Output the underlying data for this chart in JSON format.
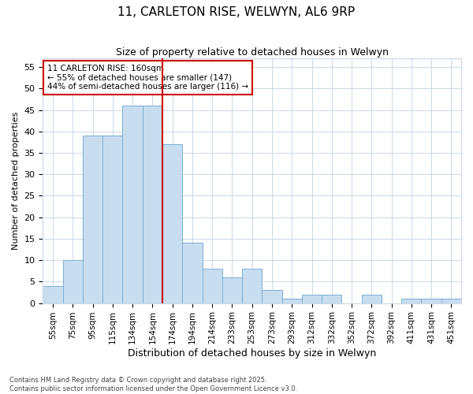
{
  "title1": "11, CARLETON RISE, WELWYN, AL6 9RP",
  "title2": "Size of property relative to detached houses in Welwyn",
  "xlabel": "Distribution of detached houses by size in Welwyn",
  "ylabel": "Number of detached properties",
  "categories": [
    "55sqm",
    "75sqm",
    "95sqm",
    "115sqm",
    "134sqm",
    "154sqm",
    "174sqm",
    "194sqm",
    "214sqm",
    "233sqm",
    "253sqm",
    "273sqm",
    "293sqm",
    "312sqm",
    "332sqm",
    "352sqm",
    "372sqm",
    "392sqm",
    "411sqm",
    "431sqm",
    "451sqm"
  ],
  "values": [
    4,
    10,
    39,
    39,
    46,
    46,
    37,
    14,
    8,
    6,
    8,
    3,
    1,
    2,
    2,
    0,
    2,
    0,
    1,
    1,
    1
  ],
  "bar_color": "#c8ddf0",
  "bar_edge_color": "#7aafd4",
  "grid_color": "#c8d8e8",
  "vline_x": 5.5,
  "vline_color": "#cc0000",
  "annotation_text": "11 CARLETON RISE: 160sqm\n← 55% of detached houses are smaller (147)\n44% of semi-detached houses are larger (116) →",
  "annotation_box_facecolor": "white",
  "annotation_box_edgecolor": "#cc0000",
  "ylim": [
    0,
    57
  ],
  "yticks": [
    0,
    5,
    10,
    15,
    20,
    25,
    30,
    35,
    40,
    45,
    50,
    55
  ],
  "bg_color": "#ffffff",
  "footnote": "Contains HM Land Registry data © Crown copyright and database right 2025.\nContains public sector information licensed under the Open Government Licence v3.0."
}
